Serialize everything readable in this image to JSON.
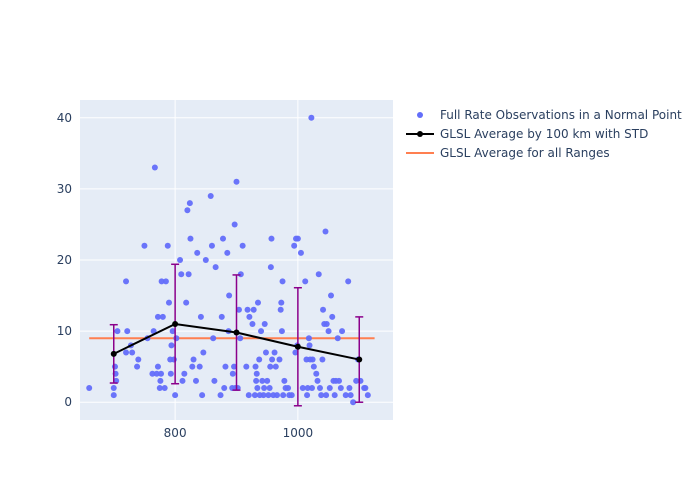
{
  "chart_data": {
    "type": "scatter",
    "title": "",
    "xlabel": "",
    "ylabel": "",
    "xlim": [
      645,
      1155
    ],
    "ylim": [
      -2.5,
      42.5
    ],
    "x_ticks": [
      800,
      1000
    ],
    "y_ticks": [
      0,
      10,
      20,
      30,
      40
    ],
    "x_tick_labels": [
      "800",
      "1000"
    ],
    "y_tick_labels": [
      "0",
      "10",
      "20",
      "30",
      "40"
    ],
    "colors": {
      "plot_bg": "#e5ecf6",
      "grid": "#ffffff",
      "scatter": "#636efa",
      "line": "#000000",
      "errorbar": "#8b008b",
      "overall": "#ff7f50",
      "text": "#2a3f5f"
    },
    "legend": [
      {
        "key": "scatter",
        "label": "Full Rate Observations in a Normal Point"
      },
      {
        "key": "line",
        "label": "GLSL Average by 100 km with STD"
      },
      {
        "key": "overall",
        "label": "GLSL Average for all Ranges"
      }
    ],
    "series": [
      {
        "name": "Full Rate Observations in a Normal Point",
        "mode": "markers",
        "points": [
          [
            660,
            2
          ],
          [
            700,
            1
          ],
          [
            700,
            2
          ],
          [
            702,
            5
          ],
          [
            703,
            4
          ],
          [
            704,
            3
          ],
          [
            706,
            10
          ],
          [
            720,
            17
          ],
          [
            720,
            7
          ],
          [
            722,
            10
          ],
          [
            728,
            8
          ],
          [
            730,
            7
          ],
          [
            738,
            5
          ],
          [
            740,
            6
          ],
          [
            750,
            22
          ],
          [
            755,
            9
          ],
          [
            763,
            4
          ],
          [
            765,
            10
          ],
          [
            767,
            33
          ],
          [
            770,
            4
          ],
          [
            772,
            5
          ],
          [
            772,
            12
          ],
          [
            775,
            2
          ],
          [
            776,
            3
          ],
          [
            777,
            4
          ],
          [
            778,
            17
          ],
          [
            780,
            12
          ],
          [
            783,
            2
          ],
          [
            785,
            17
          ],
          [
            788,
            22
          ],
          [
            790,
            14
          ],
          [
            792,
            6
          ],
          [
            793,
            4
          ],
          [
            794,
            8
          ],
          [
            796,
            10
          ],
          [
            798,
            6
          ],
          [
            800,
            1
          ],
          [
            802,
            9
          ],
          [
            808,
            20
          ],
          [
            810,
            18
          ],
          [
            812,
            3
          ],
          [
            815,
            4
          ],
          [
            818,
            14
          ],
          [
            820,
            27
          ],
          [
            822,
            18
          ],
          [
            824,
            28
          ],
          [
            825,
            23
          ],
          [
            828,
            5
          ],
          [
            830,
            6
          ],
          [
            834,
            3
          ],
          [
            836,
            21
          ],
          [
            840,
            5
          ],
          [
            842,
            12
          ],
          [
            844,
            1
          ],
          [
            846,
            7
          ],
          [
            850,
            20
          ],
          [
            858,
            29
          ],
          [
            860,
            22
          ],
          [
            862,
            9
          ],
          [
            864,
            3
          ],
          [
            866,
            19
          ],
          [
            874,
            1
          ],
          [
            876,
            12
          ],
          [
            878,
            23
          ],
          [
            880,
            2
          ],
          [
            882,
            5
          ],
          [
            885,
            21
          ],
          [
            887,
            10
          ],
          [
            888,
            15
          ],
          [
            893,
            2
          ],
          [
            894,
            4
          ],
          [
            896,
            5
          ],
          [
            897,
            25
          ],
          [
            898,
            2
          ],
          [
            900,
            31
          ],
          [
            902,
            2
          ],
          [
            904,
            13
          ],
          [
            906,
            9
          ],
          [
            907,
            18
          ],
          [
            910,
            22
          ],
          [
            916,
            5
          ],
          [
            918,
            13
          ],
          [
            920,
            1
          ],
          [
            921,
            12
          ],
          [
            926,
            11
          ],
          [
            928,
            13
          ],
          [
            930,
            1
          ],
          [
            931,
            5
          ],
          [
            932,
            3
          ],
          [
            933,
            4
          ],
          [
            934,
            2
          ],
          [
            935,
            14
          ],
          [
            937,
            6
          ],
          [
            938,
            1
          ],
          [
            940,
            10
          ],
          [
            942,
            3
          ],
          [
            944,
            1
          ],
          [
            945,
            2
          ],
          [
            946,
            11
          ],
          [
            948,
            7
          ],
          [
            950,
            3
          ],
          [
            952,
            1
          ],
          [
            954,
            2
          ],
          [
            955,
            5
          ],
          [
            956,
            19
          ],
          [
            957,
            23
          ],
          [
            958,
            6
          ],
          [
            960,
            1
          ],
          [
            962,
            7
          ],
          [
            964,
            5
          ],
          [
            966,
            1
          ],
          [
            970,
            6
          ],
          [
            972,
            13
          ],
          [
            973,
            14
          ],
          [
            974,
            10
          ],
          [
            975,
            17
          ],
          [
            976,
            1
          ],
          [
            978,
            3
          ],
          [
            980,
            2
          ],
          [
            984,
            2
          ],
          [
            986,
            1
          ],
          [
            990,
            1
          ],
          [
            994,
            22
          ],
          [
            996,
            7
          ],
          [
            997,
            23
          ],
          [
            999,
            8
          ],
          [
            1000,
            23
          ],
          [
            1005,
            21
          ],
          [
            1008,
            2
          ],
          [
            1012,
            17
          ],
          [
            1014,
            6
          ],
          [
            1015,
            1
          ],
          [
            1016,
            2
          ],
          [
            1018,
            9
          ],
          [
            1019,
            8
          ],
          [
            1020,
            6
          ],
          [
            1022,
            40
          ],
          [
            1023,
            2
          ],
          [
            1024,
            6
          ],
          [
            1026,
            5
          ],
          [
            1030,
            4
          ],
          [
            1032,
            3
          ],
          [
            1034,
            18
          ],
          [
            1036,
            2
          ],
          [
            1038,
            1
          ],
          [
            1040,
            6
          ],
          [
            1041,
            13
          ],
          [
            1043,
            11
          ],
          [
            1045,
            24
          ],
          [
            1046,
            1
          ],
          [
            1047,
            11
          ],
          [
            1050,
            10
          ],
          [
            1052,
            2
          ],
          [
            1054,
            15
          ],
          [
            1056,
            12
          ],
          [
            1058,
            3
          ],
          [
            1060,
            1
          ],
          [
            1062,
            3
          ],
          [
            1065,
            9
          ],
          [
            1067,
            3
          ],
          [
            1070,
            2
          ],
          [
            1072,
            10
          ],
          [
            1078,
            1
          ],
          [
            1082,
            17
          ],
          [
            1084,
            2
          ],
          [
            1086,
            1
          ],
          [
            1090,
            0
          ],
          [
            1095,
            3
          ],
          [
            1098,
            6
          ],
          [
            1102,
            3
          ],
          [
            1108,
            2
          ],
          [
            1110,
            2
          ],
          [
            1114,
            1
          ]
        ]
      },
      {
        "name": "GLSL Average by 100 km with STD",
        "mode": "lines+markers",
        "x": [
          700,
          800,
          900,
          1000,
          1100
        ],
        "y": [
          6.8,
          11.0,
          9.8,
          7.8,
          6.0
        ],
        "error_y": [
          4.1,
          8.4,
          8.1,
          8.3,
          6.0
        ]
      },
      {
        "name": "GLSL Average for all Ranges",
        "mode": "lines",
        "x": [
          660,
          1125
        ],
        "y": [
          9.0,
          9.0
        ]
      }
    ]
  }
}
